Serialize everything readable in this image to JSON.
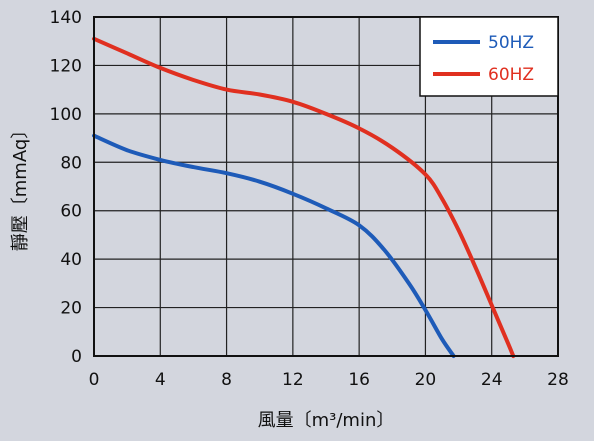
{
  "chart_data": {
    "type": "line",
    "xlabel": "風量〔m³/min〕",
    "ylabel": "靜壓〔mmAq〕",
    "xlim": [
      0,
      28
    ],
    "ylim": [
      0,
      140
    ],
    "x_ticks": [
      "0",
      "4",
      "8",
      "12",
      "16",
      "20",
      "24",
      "28"
    ],
    "y_ticks": [
      "0",
      "20",
      "40",
      "60",
      "80",
      "100",
      "120",
      "140"
    ],
    "grid": true,
    "legend_position": "top-right",
    "series": [
      {
        "name": "50HZ",
        "color": "#1e5bb8",
        "x": [
          0,
          2,
          4,
          6,
          8,
          10,
          12,
          14,
          16,
          17.5,
          19,
          20,
          21,
          21.7
        ],
        "y": [
          91,
          85,
          81,
          78,
          75.5,
          72,
          67,
          61,
          54,
          44,
          30,
          19,
          7,
          0
        ]
      },
      {
        "name": "60HZ",
        "color": "#e03020",
        "x": [
          0,
          2,
          4,
          6,
          8,
          10,
          12,
          14,
          16,
          18,
          20,
          21,
          22,
          23,
          24,
          25,
          25.3
        ],
        "y": [
          131,
          125,
          119,
          114,
          110,
          108,
          105,
          100,
          94,
          86,
          75,
          65,
          52,
          37,
          21,
          5,
          0
        ]
      }
    ]
  }
}
